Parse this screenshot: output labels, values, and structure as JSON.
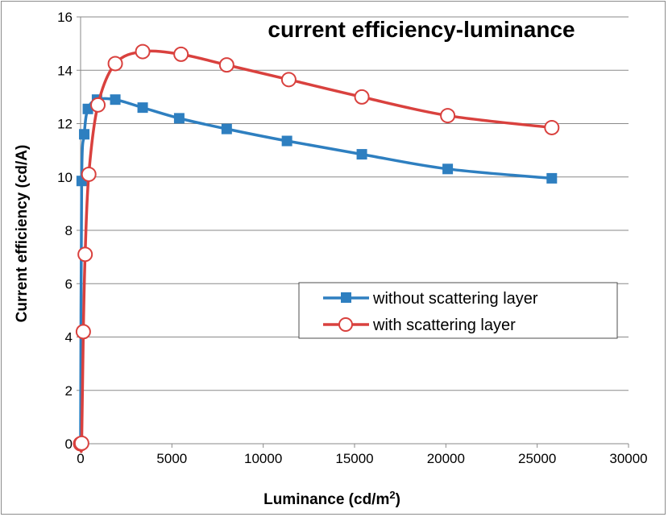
{
  "chart_data": {
    "type": "line",
    "title": "current efficiency-luminance",
    "xlabel": "Luminance (cd/m",
    "xlabel_sup": "2",
    "xlabel_suffix": ")",
    "ylabel": "Current efficiency (cd/A)",
    "xlim": [
      0,
      30000
    ],
    "ylim": [
      0,
      16
    ],
    "xticks": [
      0,
      5000,
      10000,
      15000,
      20000,
      25000,
      30000
    ],
    "yticks": [
      0,
      2,
      4,
      6,
      8,
      10,
      12,
      14,
      16
    ],
    "grid": true,
    "legend_position": "center-right",
    "series": [
      {
        "name": "without scattering layer",
        "color": "#2e7fc0",
        "marker": "square-filled",
        "x": [
          0,
          60,
          200,
          400,
          900,
          1900,
          3400,
          5400,
          8000,
          11300,
          15400,
          20100,
          25800
        ],
        "y": [
          0,
          9.85,
          11.6,
          12.55,
          12.9,
          12.9,
          12.6,
          12.2,
          11.8,
          11.35,
          10.85,
          10.3,
          9.95
        ]
      },
      {
        "name": "with scattering layer",
        "color": "#d9413e",
        "marker": "circle-open",
        "x": [
          0,
          60,
          150,
          250,
          450,
          950,
          1900,
          3400,
          5500,
          8000,
          11400,
          15400,
          20100,
          25800
        ],
        "y": [
          0,
          0.02,
          4.2,
          7.1,
          10.1,
          12.7,
          14.25,
          14.7,
          14.6,
          14.2,
          13.65,
          13.0,
          12.3,
          11.85
        ]
      }
    ]
  }
}
